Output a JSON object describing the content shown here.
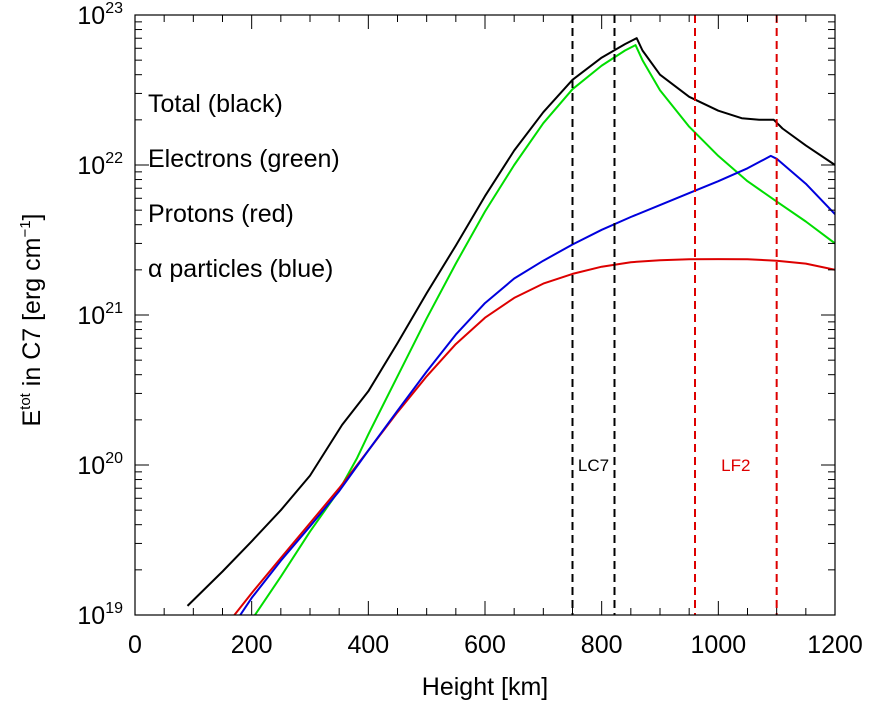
{
  "chart_data": {
    "type": "line",
    "title": "",
    "xlabel": "Height [km]",
    "ylabel": {
      "base": "E",
      "sup1": "tot",
      "mid": " in C7 [erg cm",
      "sup2": "−1",
      "end": "]"
    },
    "xlim": [
      0,
      1200
    ],
    "ylim": [
      1e+19,
      1e+23
    ],
    "yscale": "log",
    "grid": false,
    "x_ticks": [
      0,
      200,
      400,
      600,
      800,
      1000,
      1200
    ],
    "y_ticks": [
      {
        "base": "10",
        "exp": "19",
        "value": 1e+19
      },
      {
        "base": "10",
        "exp": "20",
        "value": 1e+20
      },
      {
        "base": "10",
        "exp": "21",
        "value": 1e+21
      },
      {
        "base": "10",
        "exp": "22",
        "value": 1e+22
      },
      {
        "base": "10",
        "exp": "23",
        "value": 1e+23
      }
    ],
    "legend": {
      "placement": "top-left",
      "entries": [
        "Total (black)",
        "Electrons (green)",
        "Protons (red)",
        "α particles (blue)"
      ]
    },
    "series": [
      {
        "color": "#000000",
        "points": [
          [
            90,
            1.15e+19
          ],
          [
            150,
            1.95e+19
          ],
          [
            200,
            3.1e+19
          ],
          [
            250,
            5e+19
          ],
          [
            300,
            8.5e+19
          ],
          [
            355,
            1.85e+20
          ],
          [
            400,
            3.1e+20
          ],
          [
            450,
            6.5e+20
          ],
          [
            500,
            1.4e+21
          ],
          [
            550,
            2.9e+21
          ],
          [
            600,
            6.2e+21
          ],
          [
            650,
            1.25e+22
          ],
          [
            700,
            2.25e+22
          ],
          [
            750,
            3.7e+22
          ],
          [
            800,
            5.2e+22
          ],
          [
            840,
            6.4e+22
          ],
          [
            860,
            7e+22
          ],
          [
            870,
            5.8e+22
          ],
          [
            900,
            4e+22
          ],
          [
            950,
            2.85e+22
          ],
          [
            1000,
            2.3e+22
          ],
          [
            1040,
            2.05e+22
          ],
          [
            1070,
            2e+22
          ],
          [
            1095,
            2e+22
          ],
          [
            1110,
            1.75e+22
          ],
          [
            1150,
            1.35e+22
          ],
          [
            1200,
            1e+22
          ]
        ]
      },
      {
        "color": "#00dd00",
        "points": [
          [
            195,
            8.7e+18
          ],
          [
            250,
            1.8e+19
          ],
          [
            300,
            3.6e+19
          ],
          [
            350,
            6.8e+19
          ],
          [
            380,
            1.1e+20
          ],
          [
            400,
            1.6e+20
          ],
          [
            450,
            3.9e+20
          ],
          [
            500,
            9.5e+20
          ],
          [
            550,
            2.2e+21
          ],
          [
            600,
            4.9e+21
          ],
          [
            650,
            1e+22
          ],
          [
            700,
            1.9e+22
          ],
          [
            750,
            3.2e+22
          ],
          [
            800,
            4.6e+22
          ],
          [
            840,
            5.8e+22
          ],
          [
            858,
            6.3e+22
          ],
          [
            870,
            5e+22
          ],
          [
            900,
            3.15e+22
          ],
          [
            950,
            1.8e+22
          ],
          [
            1000,
            1.15e+22
          ],
          [
            1050,
            7.8e+21
          ],
          [
            1100,
            5.7e+21
          ],
          [
            1150,
            4.2e+21
          ],
          [
            1200,
            3e+21
          ]
        ]
      },
      {
        "color": "#dd0000",
        "points": [
          [
            158,
            8.7e+18
          ],
          [
            200,
            1.4e+19
          ],
          [
            250,
            2.4e+19
          ],
          [
            300,
            4.1e+19
          ],
          [
            350,
            7e+19
          ],
          [
            400,
            1.25e+20
          ],
          [
            450,
            2.25e+20
          ],
          [
            500,
            3.9e+20
          ],
          [
            550,
            6.4e+20
          ],
          [
            600,
            9.6e+20
          ],
          [
            650,
            1.3e+21
          ],
          [
            700,
            1.62e+21
          ],
          [
            750,
            1.88e+21
          ],
          [
            800,
            2.1e+21
          ],
          [
            850,
            2.25e+21
          ],
          [
            900,
            2.32e+21
          ],
          [
            950,
            2.35e+21
          ],
          [
            1000,
            2.36e+21
          ],
          [
            1050,
            2.35e+21
          ],
          [
            1100,
            2.3e+21
          ],
          [
            1150,
            2.2e+21
          ],
          [
            1200,
            2e+21
          ]
        ]
      },
      {
        "color": "#0000dd",
        "points": [
          [
            170,
            8.7e+18
          ],
          [
            200,
            1.3e+19
          ],
          [
            250,
            2.3e+19
          ],
          [
            300,
            3.9e+19
          ],
          [
            350,
            6.7e+19
          ],
          [
            400,
            1.25e+20
          ],
          [
            450,
            2.3e+20
          ],
          [
            500,
            4.2e+20
          ],
          [
            550,
            7.4e+20
          ],
          [
            600,
            1.2e+21
          ],
          [
            650,
            1.75e+21
          ],
          [
            700,
            2.3e+21
          ],
          [
            750,
            2.95e+21
          ],
          [
            800,
            3.7e+21
          ],
          [
            850,
            4.5e+21
          ],
          [
            900,
            5.4e+21
          ],
          [
            950,
            6.5e+21
          ],
          [
            1000,
            7.8e+21
          ],
          [
            1050,
            9.5e+21
          ],
          [
            1090,
            1.15e+22
          ],
          [
            1100,
            1.1e+22
          ],
          [
            1150,
            7.5e+21
          ],
          [
            1200,
            4.7e+21
          ]
        ]
      }
    ],
    "vlines": [
      {
        "x": 750,
        "color": "#000000",
        "style": "dashed"
      },
      {
        "x": 822,
        "color": "#000000",
        "style": "dashed"
      },
      {
        "x": 960,
        "color": "#dd0000",
        "style": "dashed"
      },
      {
        "x": 1100,
        "color": "#dd0000",
        "style": "dashed"
      }
    ],
    "region_labels": [
      {
        "text": "LC7",
        "x": 786,
        "y": 1e+20,
        "color": "#000000"
      },
      {
        "text": "LF2",
        "x": 1030,
        "y": 1e+20,
        "color": "#dd0000"
      }
    ]
  }
}
